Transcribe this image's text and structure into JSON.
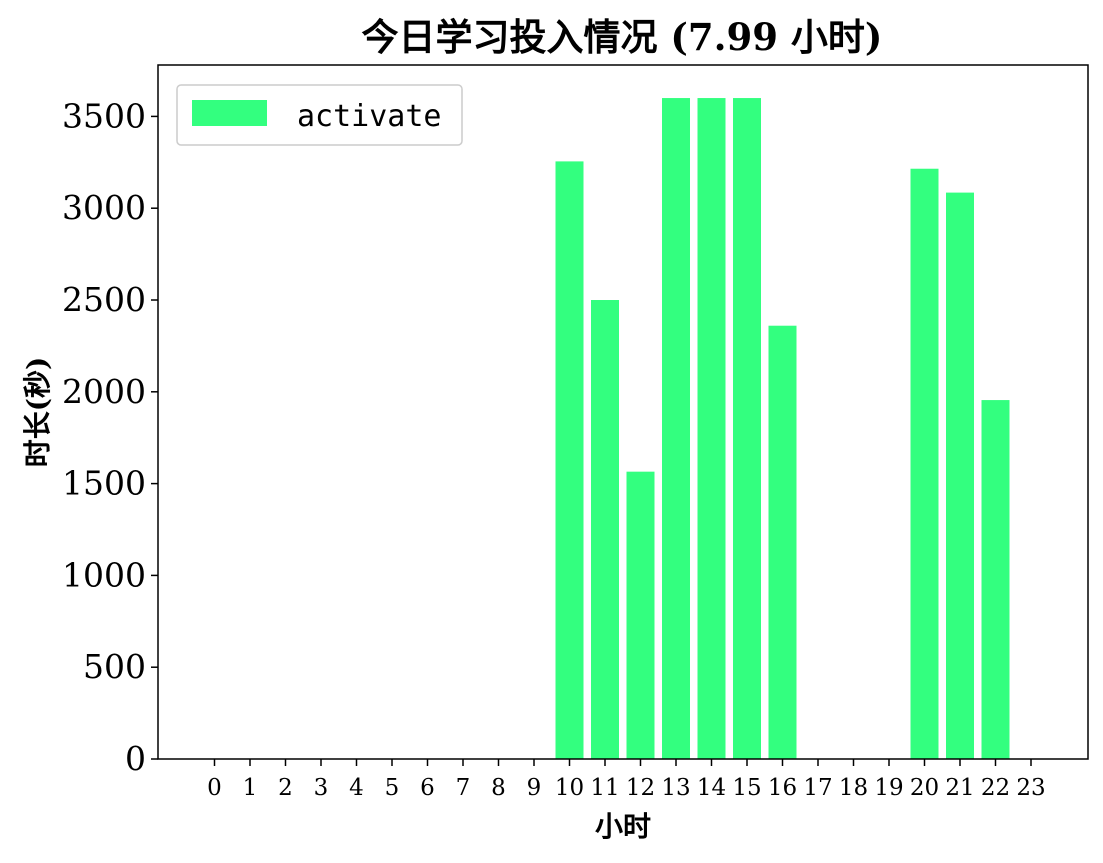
{
  "chart_data": {
    "type": "bar",
    "title": "今日学习投入情况 (7.99 小时)",
    "xlabel": "小时",
    "ylabel": "时长(秒)",
    "categories": [
      "0",
      "1",
      "2",
      "3",
      "4",
      "5",
      "6",
      "7",
      "8",
      "9",
      "10",
      "11",
      "12",
      "13",
      "14",
      "15",
      "16",
      "17",
      "18",
      "19",
      "20",
      "21",
      "22",
      "23"
    ],
    "series": [
      {
        "name": "activate",
        "color": "#33ff7f",
        "values": [
          0,
          0,
          0,
          0,
          0,
          0,
          0,
          0,
          0,
          0,
          3255,
          2500,
          1565,
          3600,
          3600,
          3600,
          2360,
          0,
          0,
          0,
          3215,
          3085,
          1955,
          0
        ]
      }
    ],
    "yticks": [
      0,
      500,
      1000,
      1500,
      2000,
      2500,
      3000,
      3500
    ],
    "ylim": [
      0,
      3780
    ],
    "legend_position": "top-left",
    "grid": false
  }
}
